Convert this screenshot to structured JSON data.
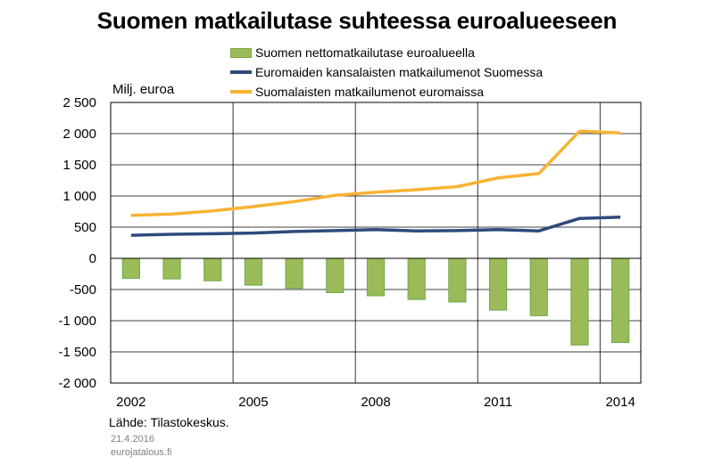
{
  "chart_data": {
    "type": "bar",
    "title": "Suomen matkailutase suhteessa euroalueeseen",
    "ylabel": "Milj. euroa",
    "xlabel": "",
    "ylim": [
      -2000,
      2500
    ],
    "yticks": [
      2500,
      2000,
      1500,
      1000,
      500,
      0,
      -500,
      -1000,
      -1500,
      -2000
    ],
    "ytick_labels": [
      "2 500",
      "2 000",
      "1 500",
      "1 000",
      "500",
      "0",
      "-500",
      "-1 000",
      "-1 500",
      "-2 000"
    ],
    "x": [
      2002,
      2003,
      2004,
      2005,
      2006,
      2007,
      2008,
      2009,
      2010,
      2011,
      2012,
      2013,
      2014
    ],
    "xtick_labels": [
      "2002",
      "2005",
      "2008",
      "2011",
      "2014"
    ],
    "grid": true,
    "legend_position": "top",
    "series": [
      {
        "name": "Suomen nettomatkailutase euroalueella",
        "kind": "bar",
        "color": "#9bbb59",
        "values": [
          -320,
          -330,
          -360,
          -430,
          -480,
          -550,
          -600,
          -660,
          -700,
          -830,
          -920,
          -1390,
          -1350
        ]
      },
      {
        "name": "Euromaiden kansalaisten matkailumenot Suomessa",
        "kind": "line",
        "color": "#2e4a7a",
        "values": [
          370,
          385,
          395,
          405,
          430,
          445,
          460,
          440,
          445,
          460,
          440,
          640,
          660
        ]
      },
      {
        "name": "Suomalaisten matkailumenot euromaissa",
        "kind": "line",
        "color": "#f9b233",
        "values": [
          690,
          710,
          760,
          830,
          910,
          1010,
          1060,
          1100,
          1150,
          1290,
          1360,
          2040,
          2010
        ]
      }
    ]
  },
  "source": "Lähde: Tilastokeskus.",
  "date": "21.4.2016",
  "site": "eurojatalous.fi"
}
